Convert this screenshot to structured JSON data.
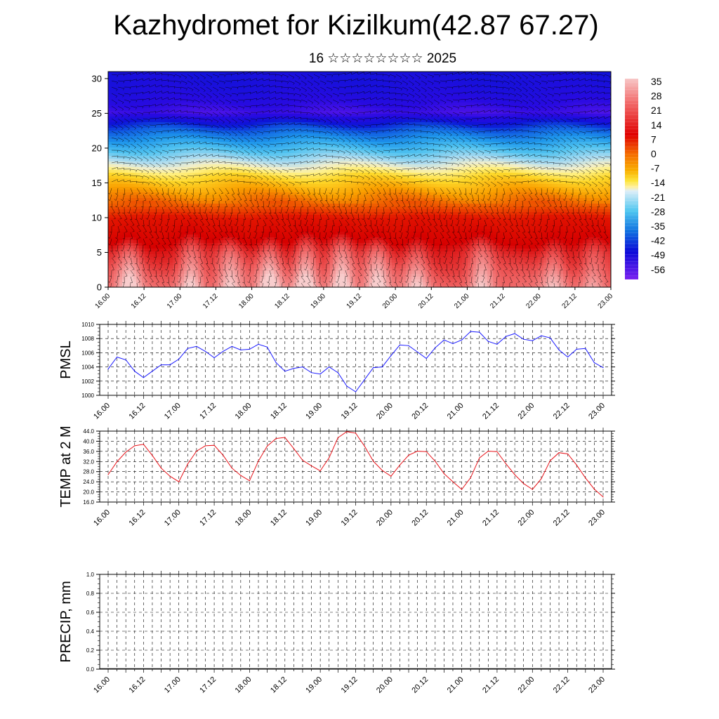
{
  "header": {
    "title": "Kazhydromet for Kizilkum(42.87 67.27)",
    "subtitle": "16 ☆☆☆☆☆☆☆☆ 2025"
  },
  "colors": {
    "pmsl_line": "#1a1aff",
    "temp_line": "#e8141a",
    "precip_line": "#111111",
    "grid": "#000000",
    "wind_barbs": "#000000"
  },
  "chart_data": [
    {
      "type": "heatmap",
      "name": "temperature-wind-profile",
      "xlabel": "",
      "ylabel": "",
      "x_tick_labels": [
        "16.00",
        "16.12",
        "17.00",
        "17.12",
        "18.00",
        "18.12",
        "19.00",
        "19.12",
        "20.00",
        "20.12",
        "21.00",
        "21.12",
        "22.00",
        "22.12",
        "23.00"
      ],
      "y_ticks": [
        0,
        5,
        10,
        15,
        20,
        25,
        30
      ],
      "ylim": [
        0,
        31
      ],
      "colorbar": {
        "labels": [
          "35",
          "28",
          "21",
          "14",
          "7",
          "0",
          "-7",
          "-14",
          "-21",
          "-28",
          "-35",
          "-42",
          "-49",
          "-56"
        ],
        "range": [
          -60,
          40
        ]
      },
      "profile_by_level": [
        [
          0,
          32
        ],
        [
          5,
          27
        ],
        [
          10,
          18
        ],
        [
          13,
          7
        ],
        [
          16,
          -5
        ],
        [
          19,
          -22
        ],
        [
          22,
          -38
        ],
        [
          25,
          -56
        ],
        [
          28,
          -52
        ],
        [
          31,
          -50
        ]
      ],
      "surface_warm_peaks": [
        {
          "x": 0.6,
          "strength": 10
        },
        {
          "x": 2.3,
          "strength": 10
        },
        {
          "x": 3.4,
          "strength": 9
        },
        {
          "x": 4.5,
          "strength": 11
        },
        {
          "x": 5.5,
          "strength": 12
        },
        {
          "x": 6.5,
          "strength": 12
        },
        {
          "x": 7.5,
          "strength": 10
        },
        {
          "x": 8.6,
          "strength": 8
        },
        {
          "x": 10.4,
          "strength": 9
        },
        {
          "x": 12.4,
          "strength": 7
        },
        {
          "x": 13.5,
          "strength": 6
        }
      ],
      "grid": false,
      "has_wind_barbs": true
    },
    {
      "type": "line",
      "name": "PMSL",
      "ylabel": "PMSL",
      "ylim": [
        1000,
        1010
      ],
      "y_ticks": [
        "1000",
        "1002",
        "1004",
        "1006",
        "1008",
        "1010"
      ],
      "x_tick_labels": [
        "16.00",
        "16.12",
        "17.00",
        "17.12",
        "18.00",
        "18.12",
        "19.00",
        "19.12",
        "20.00",
        "20.12",
        "21.00",
        "21.12",
        "22.00",
        "22.12",
        "23.00"
      ],
      "x": [
        0,
        0.25,
        0.5,
        0.75,
        1,
        1.25,
        1.5,
        1.75,
        2,
        2.25,
        2.5,
        2.75,
        3,
        3.25,
        3.5,
        3.75,
        4,
        4.25,
        4.5,
        4.75,
        5,
        5.25,
        5.5,
        5.75,
        6,
        6.25,
        6.5,
        6.75,
        7,
        7.25,
        7.5,
        7.75,
        8,
        8.25,
        8.5,
        8.75,
        9,
        9.25,
        9.5,
        9.75,
        10,
        10.25,
        10.5,
        10.75,
        11,
        11.25,
        11.5,
        11.75,
        12,
        12.25,
        12.5,
        12.75,
        13,
        13.25,
        13.5,
        13.75,
        14
      ],
      "values": [
        1003.7,
        1005.4,
        1005.0,
        1003.4,
        1002.5,
        1003.4,
        1004.3,
        1004.3,
        1005.1,
        1006.6,
        1006.9,
        1006.2,
        1005.3,
        1006.2,
        1006.9,
        1006.4,
        1006.5,
        1007.2,
        1006.8,
        1004.6,
        1003.4,
        1003.8,
        1004.0,
        1003.2,
        1003.0,
        1004.0,
        1003.2,
        1001.3,
        1000.5,
        1002.2,
        1003.9,
        1004.0,
        1005.6,
        1007.1,
        1007.0,
        1006.1,
        1005.2,
        1006.7,
        1007.8,
        1007.3,
        1007.8,
        1009.0,
        1008.9,
        1007.6,
        1007.2,
        1008.3,
        1008.7,
        1007.9,
        1007.7,
        1008.4,
        1008.1,
        1006.4,
        1005.4,
        1006.5,
        1006.6,
        1004.6,
        1003.9
      ],
      "grid": true
    },
    {
      "type": "line",
      "name": "TEMP at 2 M",
      "ylabel": "TEMP at 2 M",
      "ylim": [
        16,
        44
      ],
      "y_ticks": [
        "16.0",
        "20.0",
        "24.0",
        "28.0",
        "32.0",
        "36.0",
        "40.0",
        "44.0"
      ],
      "x_tick_labels": [
        "16.00",
        "16.12",
        "17.00",
        "17.12",
        "18.00",
        "18.12",
        "19.00",
        "19.12",
        "20.00",
        "20.12",
        "21.00",
        "21.12",
        "22.00",
        "22.12",
        "23.00"
      ],
      "x": [
        0,
        0.25,
        0.5,
        0.75,
        1,
        1.25,
        1.5,
        1.75,
        2,
        2.25,
        2.5,
        2.75,
        3,
        3.25,
        3.5,
        3.75,
        4,
        4.25,
        4.5,
        4.75,
        5,
        5.25,
        5.5,
        5.75,
        6,
        6.25,
        6.5,
        6.75,
        7,
        7.25,
        7.5,
        7.75,
        8,
        8.25,
        8.5,
        8.75,
        9,
        9.25,
        9.5,
        9.75,
        10,
        10.25,
        10.5,
        10.75,
        11,
        11.25,
        11.5,
        11.75,
        12,
        12.25,
        12.5,
        12.75,
        13,
        13.25,
        13.5,
        13.75,
        14
      ],
      "values": [
        26.8,
        31.9,
        35.7,
        38.2,
        38.8,
        34.4,
        29.4,
        26.2,
        24.0,
        31.0,
        36.1,
        38.2,
        38.4,
        34.5,
        29.4,
        26.5,
        24.4,
        32.2,
        38.1,
        41.1,
        41.5,
        37.1,
        32.5,
        30.3,
        28.3,
        33.5,
        41.4,
        43.8,
        43.2,
        38.1,
        32.1,
        28.5,
        26.2,
        30.6,
        34.5,
        36.1,
        35.9,
        32.1,
        27.2,
        24.0,
        21.0,
        25.6,
        33.4,
        36.1,
        35.9,
        31.1,
        26.8,
        23.3,
        21.0,
        25.2,
        32.3,
        35.5,
        35.0,
        30.6,
        25.5,
        21.1,
        18.0
      ],
      "grid": true
    },
    {
      "type": "bar",
      "name": "PRECIP, mm",
      "ylabel": "PRECIP, mm",
      "ylim": [
        0,
        1
      ],
      "y_ticks": [
        "0.0",
        "0.2",
        "0.4",
        "0.6",
        "0.8",
        "1.0"
      ],
      "x_tick_labels": [
        "16.00",
        "16.12",
        "17.00",
        "17.12",
        "18.00",
        "18.12",
        "19.00",
        "19.12",
        "20.00",
        "20.12",
        "21.00",
        "21.12",
        "22.00",
        "22.12",
        "23.00"
      ],
      "values": [
        0,
        0,
        0,
        0,
        0,
        0,
        0,
        0,
        0,
        0,
        0,
        0,
        0,
        0,
        0,
        0,
        0,
        0,
        0,
        0,
        0,
        0,
        0,
        0,
        0,
        0,
        0,
        0,
        0,
        0,
        0,
        0,
        0,
        0,
        0,
        0,
        0,
        0,
        0,
        0,
        0,
        0,
        0,
        0,
        0,
        0,
        0,
        0,
        0,
        0,
        0,
        0,
        0,
        0,
        0,
        0,
        0
      ],
      "grid": true
    }
  ]
}
